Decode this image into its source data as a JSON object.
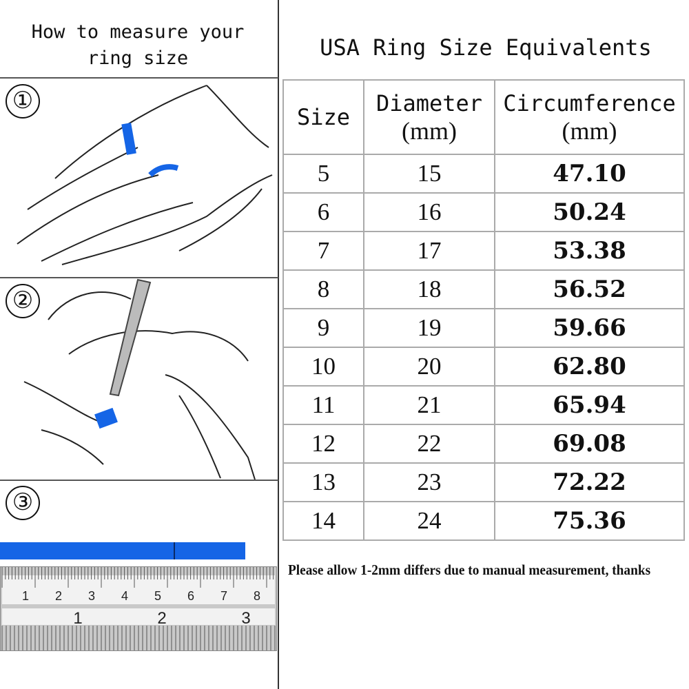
{
  "left_panel": {
    "title_line1": "How to measure your",
    "title_line2": "ring size",
    "steps": [
      "①",
      "②",
      "③"
    ],
    "ruler": {
      "cm_labels": [
        "1",
        "2",
        "3",
        "4",
        "5",
        "6",
        "7",
        "8"
      ],
      "inch_labels": [
        "1",
        "2",
        "3"
      ]
    },
    "tape_color": "#1565e6"
  },
  "right_panel": {
    "title": "USA Ring Size Equivalents",
    "headers": {
      "size": "Size",
      "diameter": "Diameter",
      "diameter_unit": "(mm)",
      "circumference": "Circumference",
      "circumference_unit": "(mm)"
    },
    "rows": [
      {
        "size": "5",
        "diameter": "15",
        "circumference": "47.10"
      },
      {
        "size": "6",
        "diameter": "16",
        "circumference": "50.24"
      },
      {
        "size": "7",
        "diameter": "17",
        "circumference": "53.38"
      },
      {
        "size": "8",
        "diameter": "18",
        "circumference": "56.52"
      },
      {
        "size": "9",
        "diameter": "19",
        "circumference": "59.66"
      },
      {
        "size": "10",
        "diameter": "20",
        "circumference": "62.80"
      },
      {
        "size": "11",
        "diameter": "21",
        "circumference": "65.94"
      },
      {
        "size": "12",
        "diameter": "22",
        "circumference": "69.08"
      },
      {
        "size": "13",
        "diameter": "23",
        "circumference": "72.22"
      },
      {
        "size": "14",
        "diameter": "24",
        "circumference": "75.36"
      }
    ],
    "note": "Please allow 1-2mm differs due to manual measurement, thanks"
  }
}
